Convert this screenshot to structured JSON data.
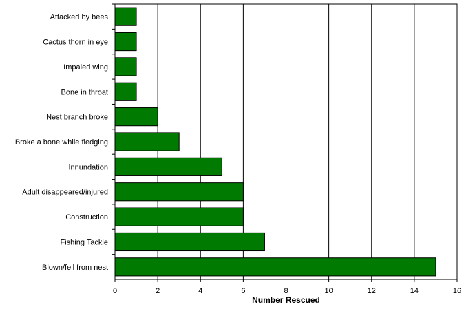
{
  "chart_data": {
    "type": "bar",
    "orientation": "horizontal",
    "categories": [
      "Attacked by bees",
      "Cactus thorn in eye",
      "Impaled wing",
      "Bone in throat",
      "Nest branch broke",
      "Broke a bone while fledging",
      "Innundation",
      "Adult disappeared/injured",
      "Construction",
      "Fishing Tackle",
      "Blown/fell from nest"
    ],
    "values": [
      1,
      1,
      1,
      1,
      2,
      3,
      5,
      6,
      6,
      7,
      15
    ],
    "title": "",
    "xlabel": "Number Rescued",
    "ylabel": "",
    "xlim": [
      0,
      16
    ],
    "xticks": [
      "0",
      "2",
      "4",
      "6",
      "8",
      "10",
      "12",
      "14",
      "16"
    ],
    "grid": true,
    "legend": "none",
    "colors": {
      "bar_fill": "#007a00",
      "bar_stroke": "#000000",
      "grid": "#000000",
      "background": "#ffffff"
    }
  }
}
